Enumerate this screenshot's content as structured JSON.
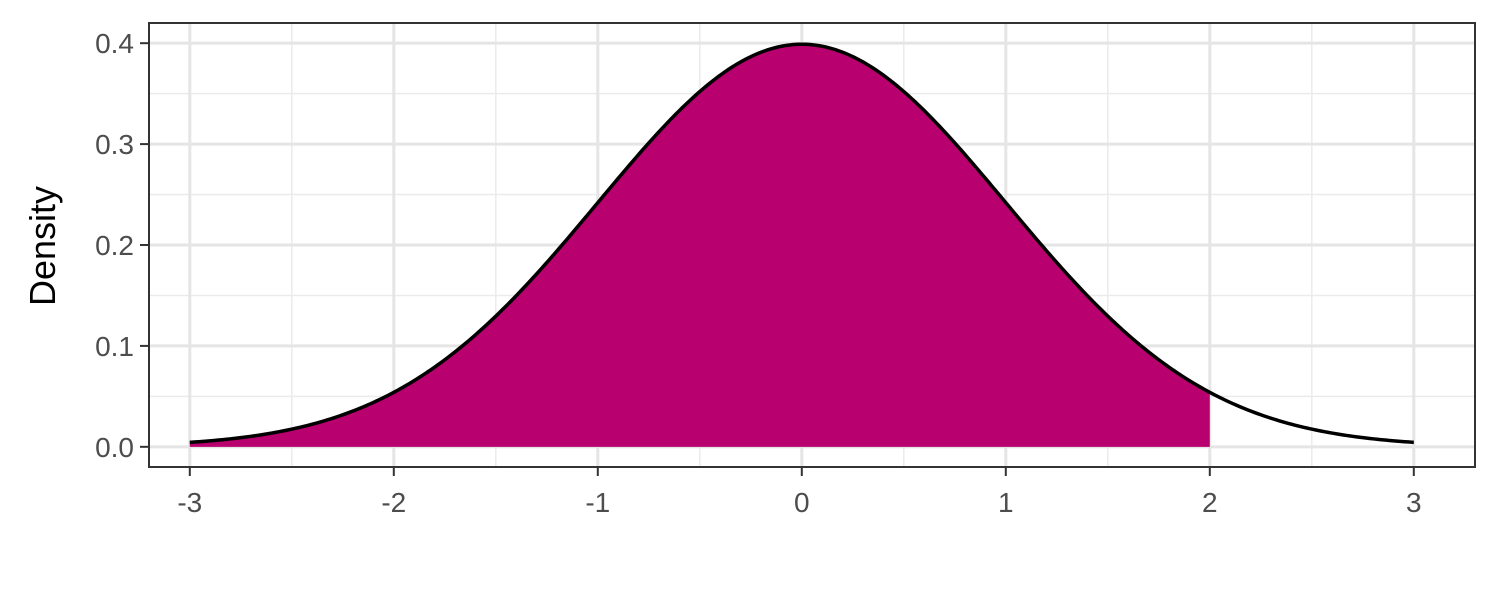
{
  "chart_data": {
    "type": "area",
    "title": "",
    "xlabel": "",
    "ylabel": "Density",
    "xlim": [
      -3.2,
      3.3
    ],
    "ylim": [
      -0.02,
      0.42
    ],
    "x_ticks": [
      -3,
      -2,
      -1,
      0,
      1,
      2,
      3
    ],
    "x_tick_labels": [
      "-3",
      "-2",
      "-1",
      "0",
      "1",
      "2",
      "3"
    ],
    "y_ticks": [
      0.0,
      0.1,
      0.2,
      0.3,
      0.4
    ],
    "y_tick_labels": [
      "0.0",
      "0.1",
      "0.2",
      "0.3",
      "0.4"
    ],
    "grid": true,
    "legend": "none",
    "series": [
      {
        "distribution": "standard normal density",
        "mean": 0,
        "sd": 1,
        "x_range": [
          -3,
          3
        ],
        "line_color": "#000000"
      }
    ],
    "shaded_region": {
      "from": -3,
      "to": 2,
      "color": "#B8006E"
    }
  }
}
